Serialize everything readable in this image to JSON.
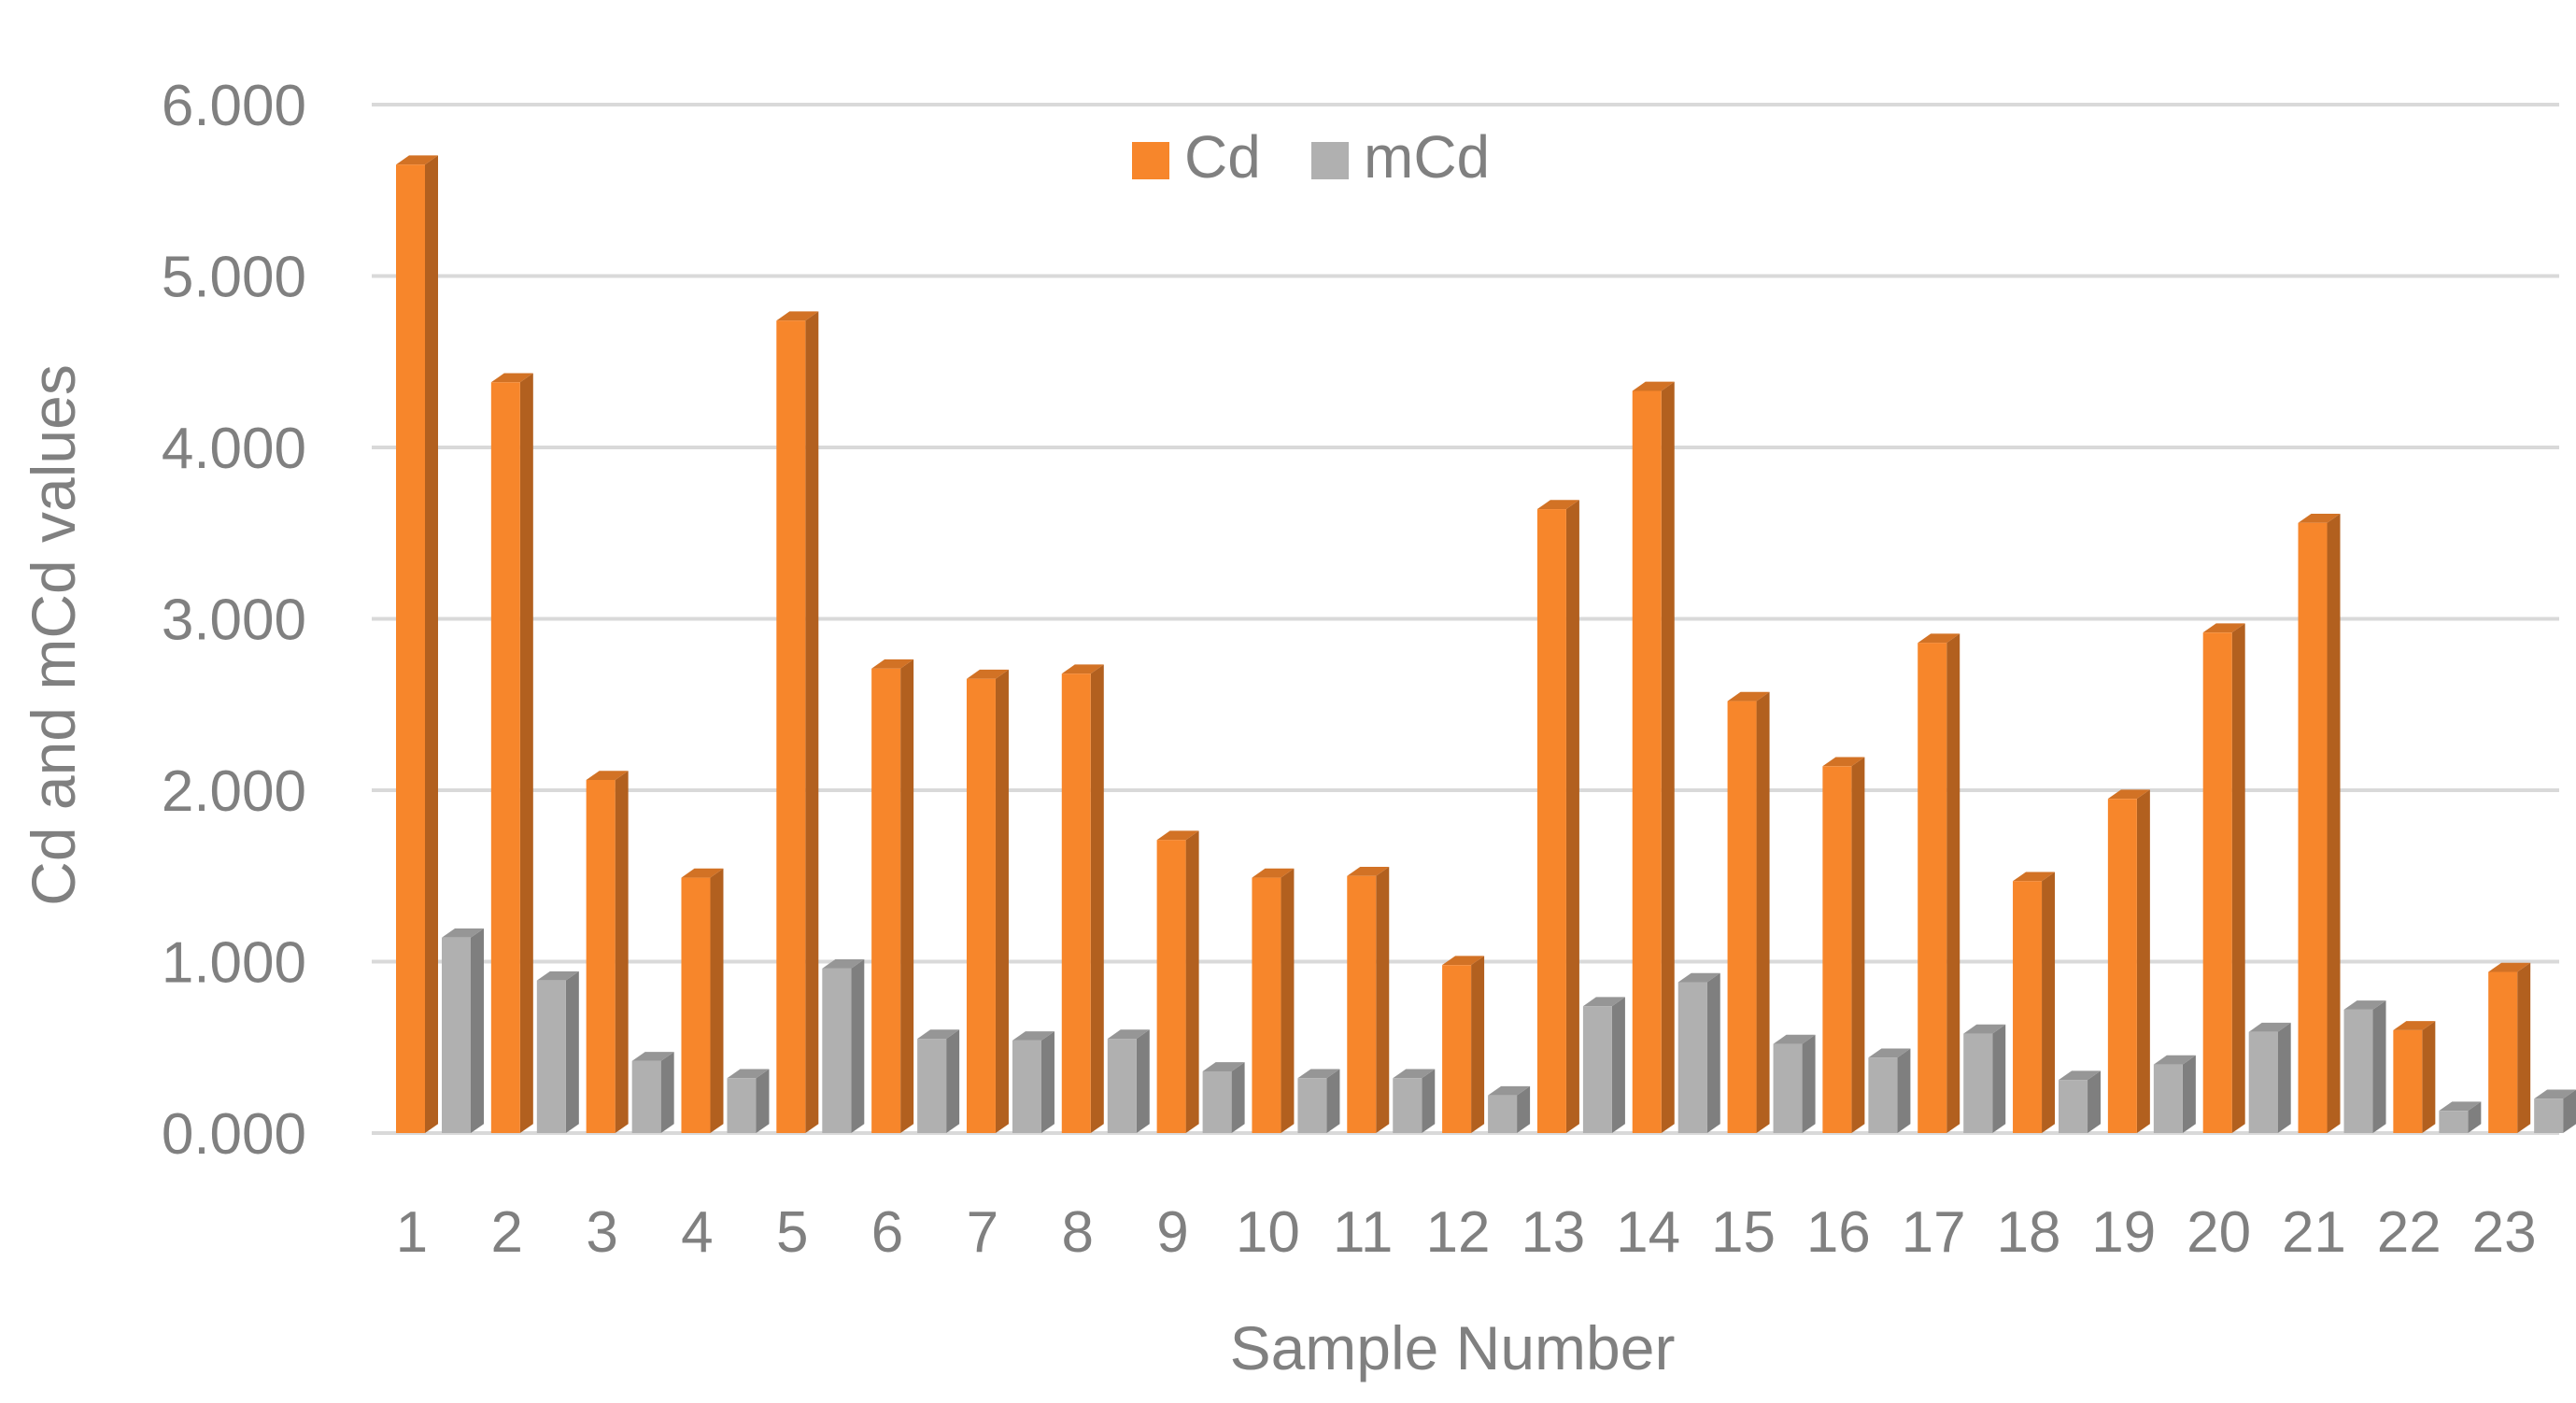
{
  "chart_data": {
    "type": "bar",
    "style": "3d-clustered",
    "xlabel": "Sample Number",
    "ylabel": "Cd and mCd values",
    "ylim": [
      0,
      6
    ],
    "yticks": [
      "0.000",
      "1.000",
      "2.000",
      "3.000",
      "4.000",
      "5.000",
      "6.000"
    ],
    "grid": true,
    "legend_position": "top-center",
    "categories": [
      "1",
      "2",
      "3",
      "4",
      "5",
      "6",
      "7",
      "8",
      "9",
      "10",
      "11",
      "12",
      "13",
      "14",
      "15",
      "16",
      "17",
      "18",
      "19",
      "20",
      "21",
      "22",
      "23"
    ],
    "series": [
      {
        "name": "Cd",
        "color": "#F7862B",
        "values": [
          5.65,
          4.38,
          2.06,
          1.49,
          4.74,
          2.71,
          2.65,
          2.68,
          1.71,
          1.49,
          1.5,
          0.98,
          3.64,
          4.33,
          2.52,
          2.14,
          2.86,
          1.47,
          1.95,
          2.92,
          3.56,
          0.6,
          0.94
        ]
      },
      {
        "name": "mCd",
        "color": "#B0B0B0",
        "values": [
          1.14,
          0.89,
          0.42,
          0.32,
          0.96,
          0.55,
          0.54,
          0.55,
          0.36,
          0.32,
          0.32,
          0.22,
          0.74,
          0.88,
          0.52,
          0.44,
          0.58,
          0.31,
          0.4,
          0.59,
          0.72,
          0.13,
          0.2
        ]
      }
    ]
  }
}
